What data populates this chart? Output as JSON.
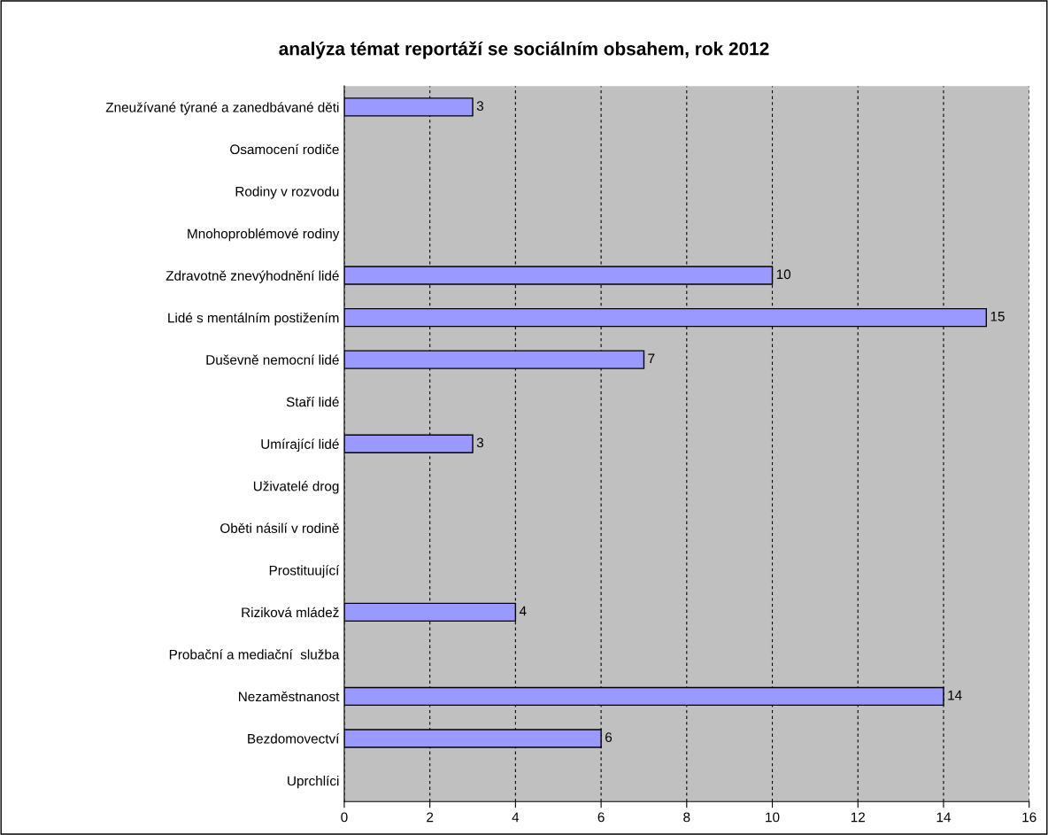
{
  "chart_data": {
    "type": "bar",
    "orientation": "horizontal",
    "title": "analýza témat reportáží se sociálním obsahem, rok 2012",
    "categories": [
      "Zneužívané týrané a zanedbávané děti",
      "Osamocení rodiče",
      "Rodiny v rozvodu",
      "Mnohoproblémové rodiny",
      "Zdravotně znevýhodnění lidé",
      "Lidé s mentálním postižením",
      "Duševně nemocní lidé",
      "Staří lidé",
      "Umírající lidé",
      "Uživatelé drog",
      "Oběti násilí v rodině",
      "Prostituující",
      "Riziková mládež",
      "Probační a mediační  služba",
      "Nezaměstnanost",
      "Bezdomovectví",
      "Uprchlíci"
    ],
    "values": [
      3,
      0,
      0,
      0,
      10,
      15,
      7,
      0,
      3,
      0,
      0,
      0,
      4,
      0,
      14,
      6,
      0
    ],
    "value_labels": [
      "3",
      null,
      null,
      null,
      "10",
      "15",
      "7",
      null,
      "3",
      null,
      null,
      null,
      "4",
      null,
      "14",
      "6",
      null
    ],
    "color": "#9999ff",
    "xlim": [
      0,
      16
    ],
    "xticks": [
      0,
      2,
      4,
      6,
      8,
      10,
      12,
      14,
      16
    ],
    "grid": "x",
    "legend": false
  }
}
